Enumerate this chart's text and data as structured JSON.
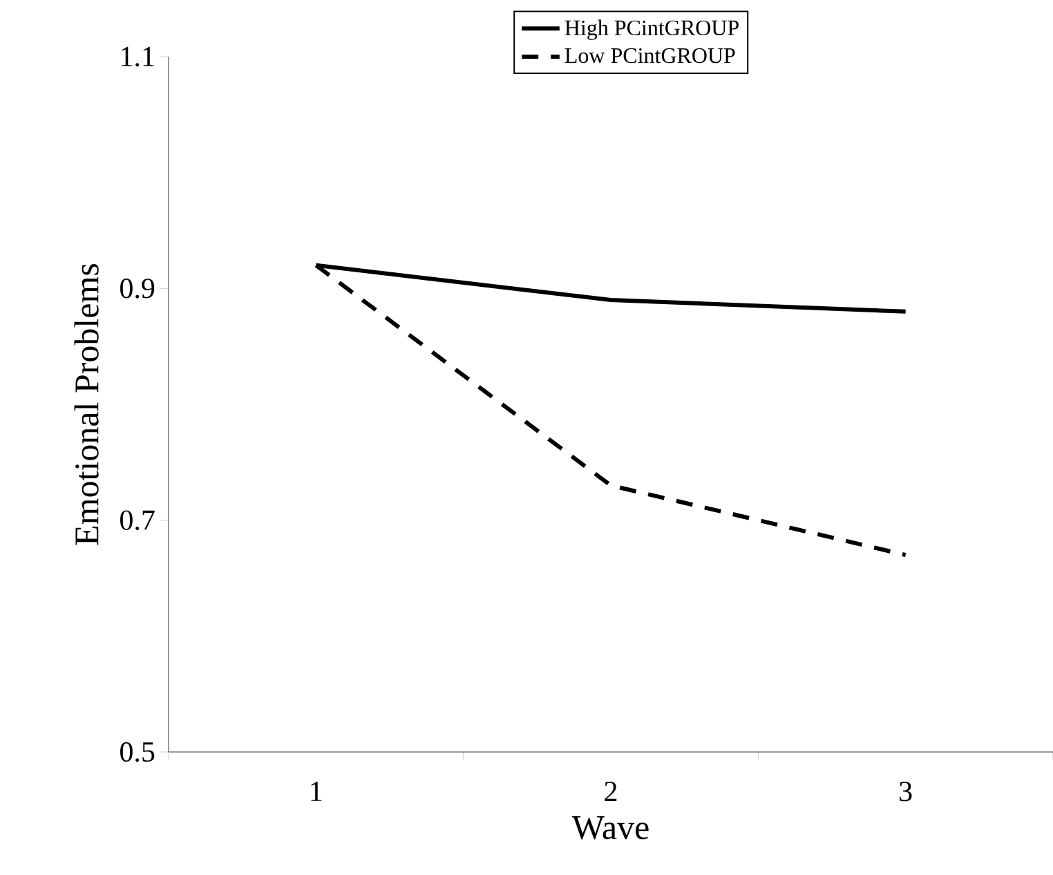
{
  "chart_data": {
    "type": "line",
    "xlabel": "Wave",
    "ylabel": "Emotional Problems",
    "categories": [
      "1",
      "2",
      "3"
    ],
    "series": [
      {
        "name": "High PCintGROUP",
        "color": "#000000",
        "values": [
          0.92,
          0.89,
          0.88
        ],
        "line_style": "solid"
      },
      {
        "name": "Low PCintGROUP",
        "color": "#000000",
        "values": [
          0.92,
          0.73,
          0.67
        ],
        "line_style": "dashed"
      }
    ],
    "ylim": [
      0.5,
      1.1
    ],
    "yticks": [
      0.5,
      0.7,
      0.9,
      1.1
    ],
    "grid": false,
    "legend": "top right",
    "marker": "none"
  }
}
